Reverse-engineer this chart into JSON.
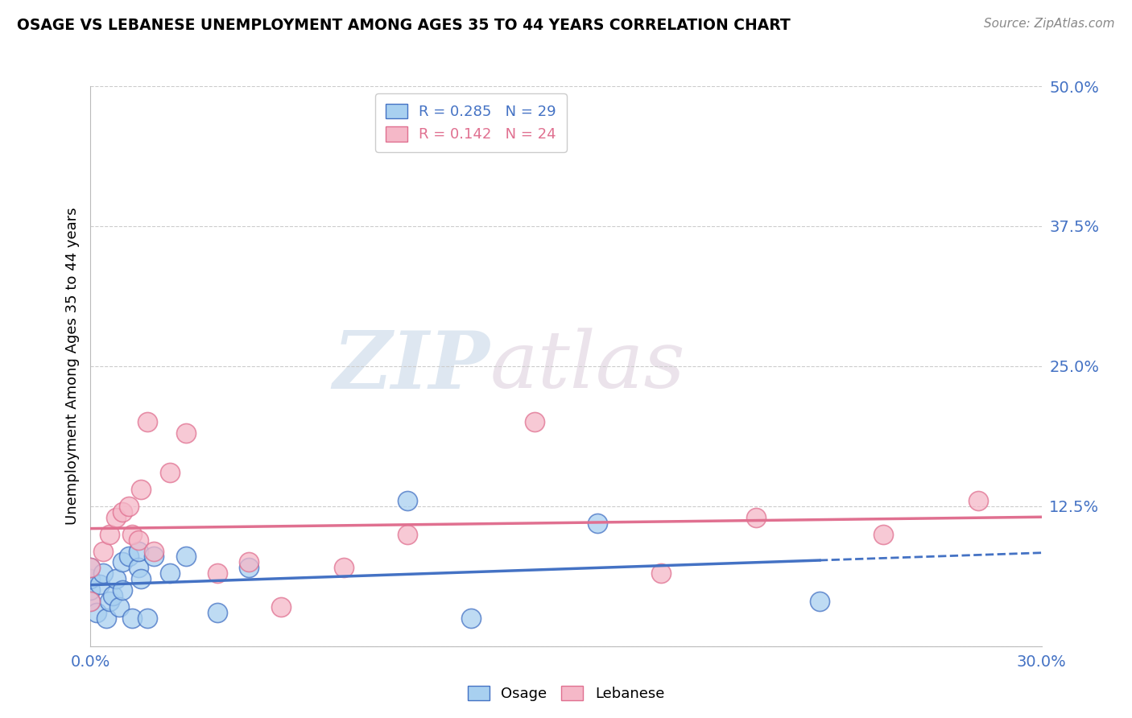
{
  "title": "OSAGE VS LEBANESE UNEMPLOYMENT AMONG AGES 35 TO 44 YEARS CORRELATION CHART",
  "source": "Source: ZipAtlas.com",
  "ylabel": "Unemployment Among Ages 35 to 44 years",
  "xlim": [
    0.0,
    0.3
  ],
  "ylim": [
    0.0,
    0.5
  ],
  "xticks": [
    0.0,
    0.05,
    0.1,
    0.15,
    0.2,
    0.25,
    0.3
  ],
  "xtick_labels": [
    "0.0%",
    "",
    "",
    "",
    "",
    "",
    "30.0%"
  ],
  "yticks": [
    0.0,
    0.125,
    0.25,
    0.375,
    0.5
  ],
  "ytick_labels": [
    "",
    "12.5%",
    "25.0%",
    "37.5%",
    "50.0%"
  ],
  "osage_R": 0.285,
  "osage_N": 29,
  "lebanese_R": 0.142,
  "lebanese_N": 24,
  "osage_color": "#A8D0F0",
  "lebanese_color": "#F5B8C8",
  "osage_line_color": "#4472C4",
  "lebanese_line_color": "#E07090",
  "background_color": "#FFFFFF",
  "watermark_zip": "ZIP",
  "watermark_atlas": "atlas",
  "osage_x": [
    0.0,
    0.0,
    0.0,
    0.0,
    0.002,
    0.003,
    0.004,
    0.005,
    0.006,
    0.007,
    0.008,
    0.009,
    0.01,
    0.01,
    0.012,
    0.013,
    0.015,
    0.015,
    0.016,
    0.018,
    0.02,
    0.025,
    0.03,
    0.04,
    0.05,
    0.1,
    0.12,
    0.16,
    0.23
  ],
  "osage_y": [
    0.04,
    0.05,
    0.06,
    0.07,
    0.03,
    0.055,
    0.065,
    0.025,
    0.04,
    0.045,
    0.06,
    0.035,
    0.075,
    0.05,
    0.08,
    0.025,
    0.07,
    0.085,
    0.06,
    0.025,
    0.08,
    0.065,
    0.08,
    0.03,
    0.07,
    0.13,
    0.025,
    0.11,
    0.04
  ],
  "lebanese_x": [
    0.0,
    0.0,
    0.004,
    0.006,
    0.008,
    0.01,
    0.012,
    0.013,
    0.015,
    0.016,
    0.018,
    0.02,
    0.025,
    0.03,
    0.04,
    0.05,
    0.06,
    0.08,
    0.1,
    0.14,
    0.18,
    0.21,
    0.25,
    0.28
  ],
  "lebanese_y": [
    0.04,
    0.07,
    0.085,
    0.1,
    0.115,
    0.12,
    0.125,
    0.1,
    0.095,
    0.14,
    0.2,
    0.085,
    0.155,
    0.19,
    0.065,
    0.075,
    0.035,
    0.07,
    0.1,
    0.2,
    0.065,
    0.115,
    0.1,
    0.13
  ]
}
